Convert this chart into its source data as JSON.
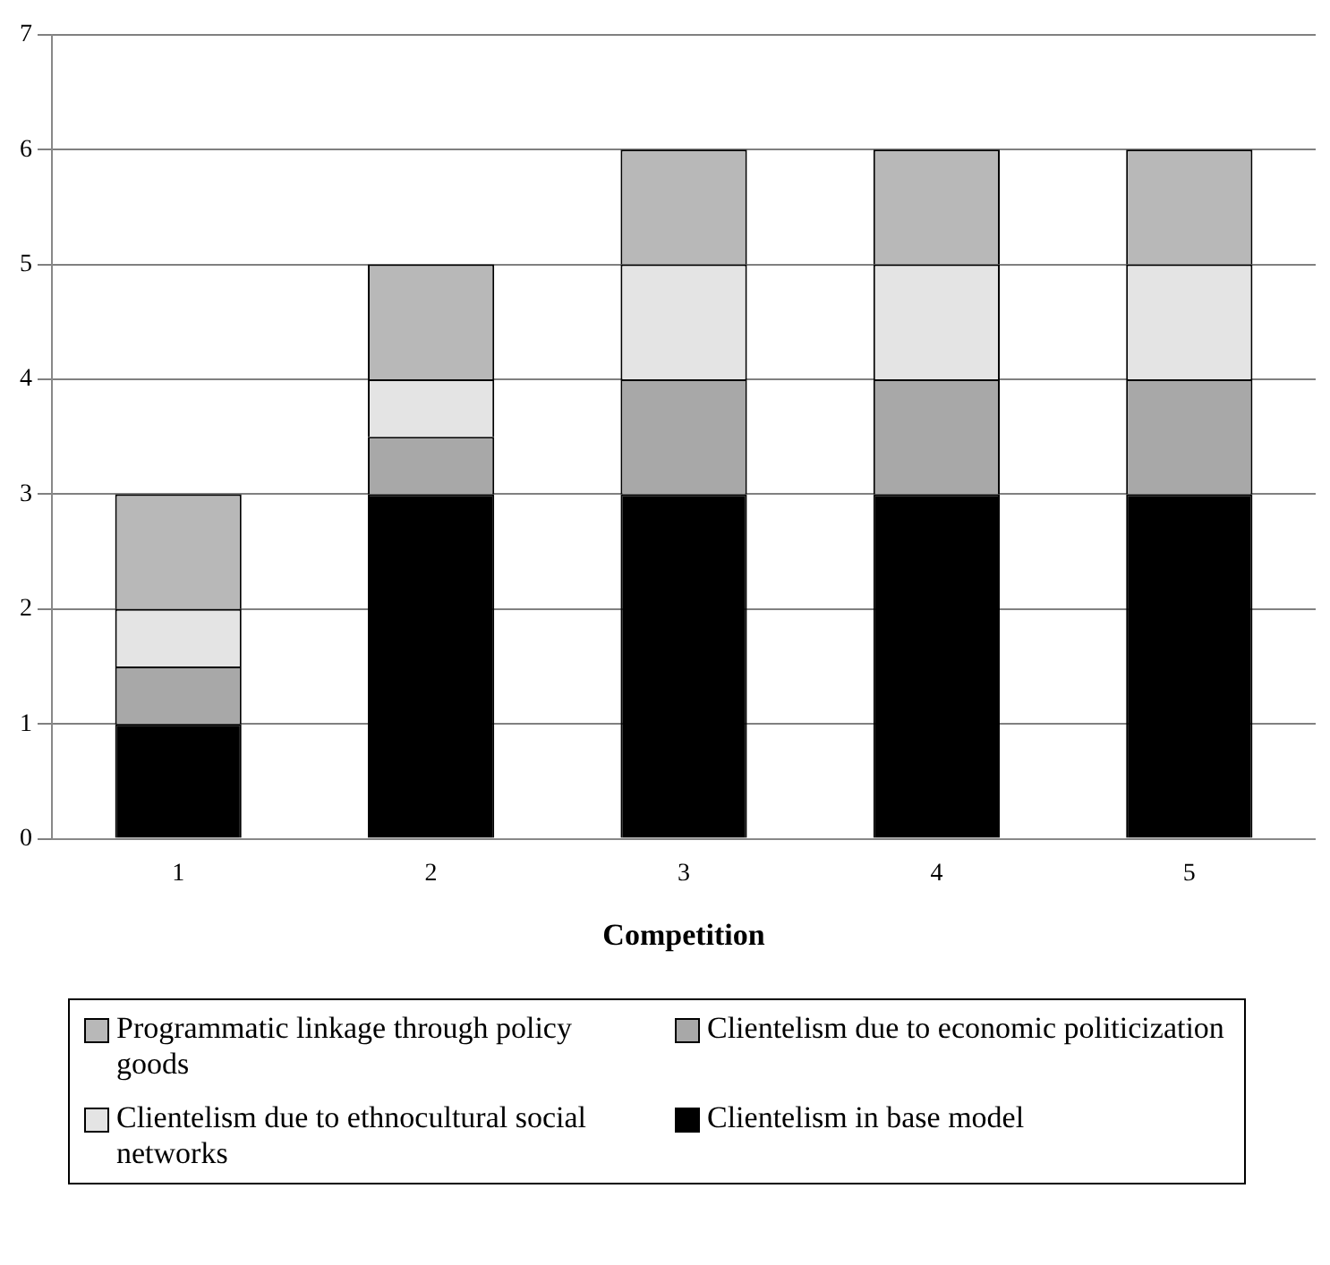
{
  "chart_data": {
    "type": "bar",
    "stacked": true,
    "xlabel": "Competition",
    "categories": [
      "1",
      "2",
      "3",
      "4",
      "5"
    ],
    "series": [
      {
        "name": "Clientelism in base model",
        "color": "#000000",
        "values": [
          1,
          3,
          3,
          3,
          3
        ]
      },
      {
        "name": "Clientelism due to economic politicization",
        "color": "#a8a8a8",
        "values": [
          0.5,
          0.5,
          1,
          1,
          1
        ]
      },
      {
        "name": "Clientelism due to ethnocultural social networks",
        "color": "#e4e4e4",
        "values": [
          0.5,
          0.5,
          1,
          1,
          1
        ]
      },
      {
        "name": "Programmatic linkage through policy goods",
        "color": "#b8b8b8",
        "values": [
          1,
          1,
          1,
          1,
          1
        ]
      }
    ],
    "ylim": [
      0,
      7
    ],
    "yticks": [
      0,
      1,
      2,
      3,
      4,
      5,
      6,
      7
    ],
    "grid": "y",
    "legend": "bottom"
  }
}
